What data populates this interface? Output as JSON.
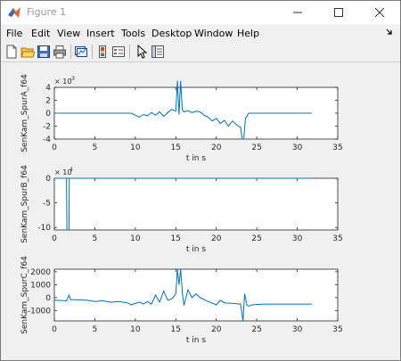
{
  "window": {
    "title": "Figure 1",
    "minimize_icon": "minimize-icon",
    "maximize_icon": "maximize-icon",
    "close_icon": "close-icon"
  },
  "menu": [
    "File",
    "Edit",
    "View",
    "Insert",
    "Tools",
    "Desktop",
    "Window",
    "Help"
  ],
  "toolbar": [
    "new-figure-icon",
    "open-file-icon",
    "save-icon",
    "print-icon",
    "link-plot-icon",
    "insert-colorbar-icon",
    "insert-legend-icon",
    "edit-plot-arrow-icon",
    "property-inspector-icon"
  ],
  "colors": {
    "line": "#0072bd",
    "axes_bg": "#ffffff",
    "figure_bg": "#f0f0f0",
    "axis": "#262626"
  },
  "chart_data": [
    {
      "type": "line",
      "xlabel": "t in s",
      "ylabel": "SenKam_SpurA_f64",
      "exponent": "× 10",
      "exponent_power": "-3",
      "xlim": [
        0,
        35
      ],
      "ylim": [
        -4,
        4
      ],
      "xticks": [
        "0",
        "5",
        "10",
        "15",
        "20",
        "25",
        "30",
        "35"
      ],
      "yticks": [
        "4",
        "2",
        "0",
        "-2",
        "-4"
      ],
      "ytick_values": [
        4,
        2,
        0,
        -2,
        -4
      ],
      "x": [
        0,
        5,
        9.5,
        10,
        10.5,
        11,
        11.5,
        12,
        12.5,
        13,
        13.5,
        14,
        14.5,
        15,
        15.2,
        15.4,
        15.6,
        15.8,
        16,
        16.5,
        17,
        17.5,
        18,
        18.5,
        19,
        19.5,
        20,
        20.5,
        21,
        21.5,
        22,
        22.5,
        23,
        23.2,
        23.4,
        23.6,
        24,
        25,
        30,
        31.8
      ],
      "y": [
        0,
        0,
        0,
        -0.3,
        -0.6,
        -0.2,
        -0.4,
        0.1,
        -0.3,
        0.2,
        -0.5,
        0.1,
        0.6,
        0.3,
        5,
        -0.2,
        5,
        0.5,
        0.2,
        0.4,
        0.1,
        0.3,
        0.2,
        -0.3,
        -0.6,
        -1.2,
        -0.8,
        -1.6,
        -1.1,
        -2.0,
        -1.2,
        -1.8,
        -2.2,
        -4,
        -4,
        -0.8,
        0,
        0,
        0,
        0
      ]
    },
    {
      "type": "line",
      "xlabel": "t in s",
      "ylabel": "SenKam_SpurB_f64",
      "exponent": "× 10",
      "exponent_power": "4",
      "xlim": [
        0,
        35
      ],
      "ylim": [
        -10.5,
        0
      ],
      "xticks": [
        "0",
        "5",
        "10",
        "15",
        "20",
        "25",
        "30",
        "35"
      ],
      "yticks": [
        "0",
        "-5",
        "-10"
      ],
      "ytick_values": [
        0,
        -5,
        -10
      ],
      "x": [
        0,
        1.5,
        1.55,
        1.6,
        1.75,
        1.8,
        1.85,
        5,
        10,
        15,
        20,
        25,
        30,
        31.8
      ],
      "y": [
        0,
        0,
        -10.5,
        -10.5,
        -10.5,
        -10.5,
        0,
        0,
        0,
        0,
        0,
        0,
        0,
        0
      ]
    },
    {
      "type": "line",
      "xlabel": "t in s",
      "ylabel": "SenKam_SpurC_f64",
      "xlim": [
        0,
        35
      ],
      "ylim": [
        -1800,
        2200
      ],
      "xticks": [
        "0",
        "5",
        "10",
        "15",
        "20",
        "25",
        "30",
        "35"
      ],
      "yticks": [
        "2000",
        "1000",
        "0",
        "-1000"
      ],
      "ytick_values": [
        2000,
        1000,
        0,
        -1000
      ],
      "x": [
        0,
        1.5,
        1.6,
        1.8,
        2,
        4,
        5,
        6,
        7,
        8,
        9,
        9.5,
        10,
        10.5,
        11,
        11.5,
        12,
        12.5,
        13,
        13.5,
        14,
        14.5,
        15,
        15.2,
        15.4,
        15.6,
        15.8,
        16,
        16.5,
        17,
        17.5,
        18,
        19,
        20,
        20.5,
        21,
        22,
        23,
        23.3,
        23.5,
        23.8,
        24,
        24.5,
        26,
        30,
        31.8
      ],
      "y": [
        -200,
        -250,
        -100,
        200,
        -150,
        -200,
        -300,
        -250,
        -350,
        -300,
        -400,
        -550,
        -450,
        -350,
        -500,
        -300,
        -500,
        200,
        -350,
        500,
        -200,
        -100,
        300,
        2200,
        1000,
        2200,
        400,
        -600,
        600,
        0,
        300,
        0,
        -300,
        -550,
        -200,
        -400,
        -450,
        -500,
        -1800,
        300,
        -600,
        -650,
        -550,
        -500,
        -500,
        -500
      ]
    }
  ]
}
